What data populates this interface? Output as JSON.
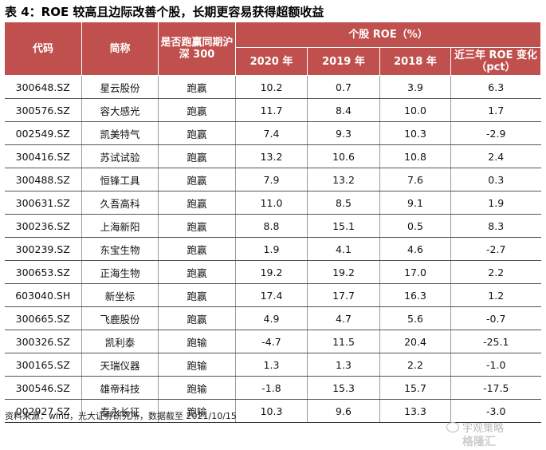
{
  "title": "表 4：ROE 较高且边际改善个股，长期更容易获得超额收益",
  "headers": {
    "code": "代码",
    "name": "简称",
    "beat": "是否跑赢同期沪深 300",
    "roe_group": "个股 ROE（%）",
    "y2020": "2020 年",
    "y2019": "2019 年",
    "y2018": "2018 年",
    "change": "近三年 ROE 变化（pct）"
  },
  "rows": [
    {
      "code": "300648.SZ",
      "name": "星云股份",
      "beat": "跑赢",
      "y2020": "10.2",
      "y2019": "0.7",
      "y2018": "3.9",
      "change": "6.3"
    },
    {
      "code": "300576.SZ",
      "name": "容大感光",
      "beat": "跑赢",
      "y2020": "11.7",
      "y2019": "8.4",
      "y2018": "10.0",
      "change": "1.7"
    },
    {
      "code": "002549.SZ",
      "name": "凯美特气",
      "beat": "跑赢",
      "y2020": "7.4",
      "y2019": "9.3",
      "y2018": "10.3",
      "change": "-2.9"
    },
    {
      "code": "300416.SZ",
      "name": "苏试试验",
      "beat": "跑赢",
      "y2020": "13.2",
      "y2019": "10.6",
      "y2018": "10.8",
      "change": "2.4"
    },
    {
      "code": "300488.SZ",
      "name": "恒锋工具",
      "beat": "跑赢",
      "y2020": "7.9",
      "y2019": "13.2",
      "y2018": "7.6",
      "change": "0.3"
    },
    {
      "code": "300631.SZ",
      "name": "久吾高科",
      "beat": "跑赢",
      "y2020": "11.0",
      "y2019": "8.5",
      "y2018": "9.1",
      "change": "1.9"
    },
    {
      "code": "300236.SZ",
      "name": "上海新阳",
      "beat": "跑赢",
      "y2020": "8.8",
      "y2019": "15.1",
      "y2018": "0.5",
      "change": "8.3"
    },
    {
      "code": "300239.SZ",
      "name": "东宝生物",
      "beat": "跑赢",
      "y2020": "1.9",
      "y2019": "4.1",
      "y2018": "4.6",
      "change": "-2.7"
    },
    {
      "code": "300653.SZ",
      "name": "正海生物",
      "beat": "跑赢",
      "y2020": "19.2",
      "y2019": "19.2",
      "y2018": "17.0",
      "change": "2.2"
    },
    {
      "code": "603040.SH",
      "name": "新坐标",
      "beat": "跑赢",
      "y2020": "17.4",
      "y2019": "17.7",
      "y2018": "16.3",
      "change": "1.2"
    },
    {
      "code": "300665.SZ",
      "name": "飞鹿股份",
      "beat": "跑赢",
      "y2020": "4.9",
      "y2019": "4.7",
      "y2018": "5.6",
      "change": "-0.7"
    },
    {
      "code": "300326.SZ",
      "name": "凯利泰",
      "beat": "跑输",
      "y2020": "-4.7",
      "y2019": "11.5",
      "y2018": "20.4",
      "change": "-25.1"
    },
    {
      "code": "300165.SZ",
      "name": "天瑞仪器",
      "beat": "跑输",
      "y2020": "1.3",
      "y2019": "1.3",
      "y2018": "2.2",
      "change": "-1.0"
    },
    {
      "code": "300546.SZ",
      "name": "雄帝科技",
      "beat": "跑输",
      "y2020": "-1.8",
      "y2019": "15.3",
      "y2018": "15.7",
      "change": "-17.5"
    },
    {
      "code": "002927.SZ",
      "name": "泰永长征",
      "beat": "跑输",
      "y2020": "10.3",
      "y2019": "9.6",
      "y2018": "13.3",
      "change": "-3.0"
    }
  ],
  "source": "资料来源：wind，光大证券研究所，数据截至 2021/10/15",
  "watermark": {
    "line1": "宇观策略",
    "line2": "格隆汇"
  }
}
